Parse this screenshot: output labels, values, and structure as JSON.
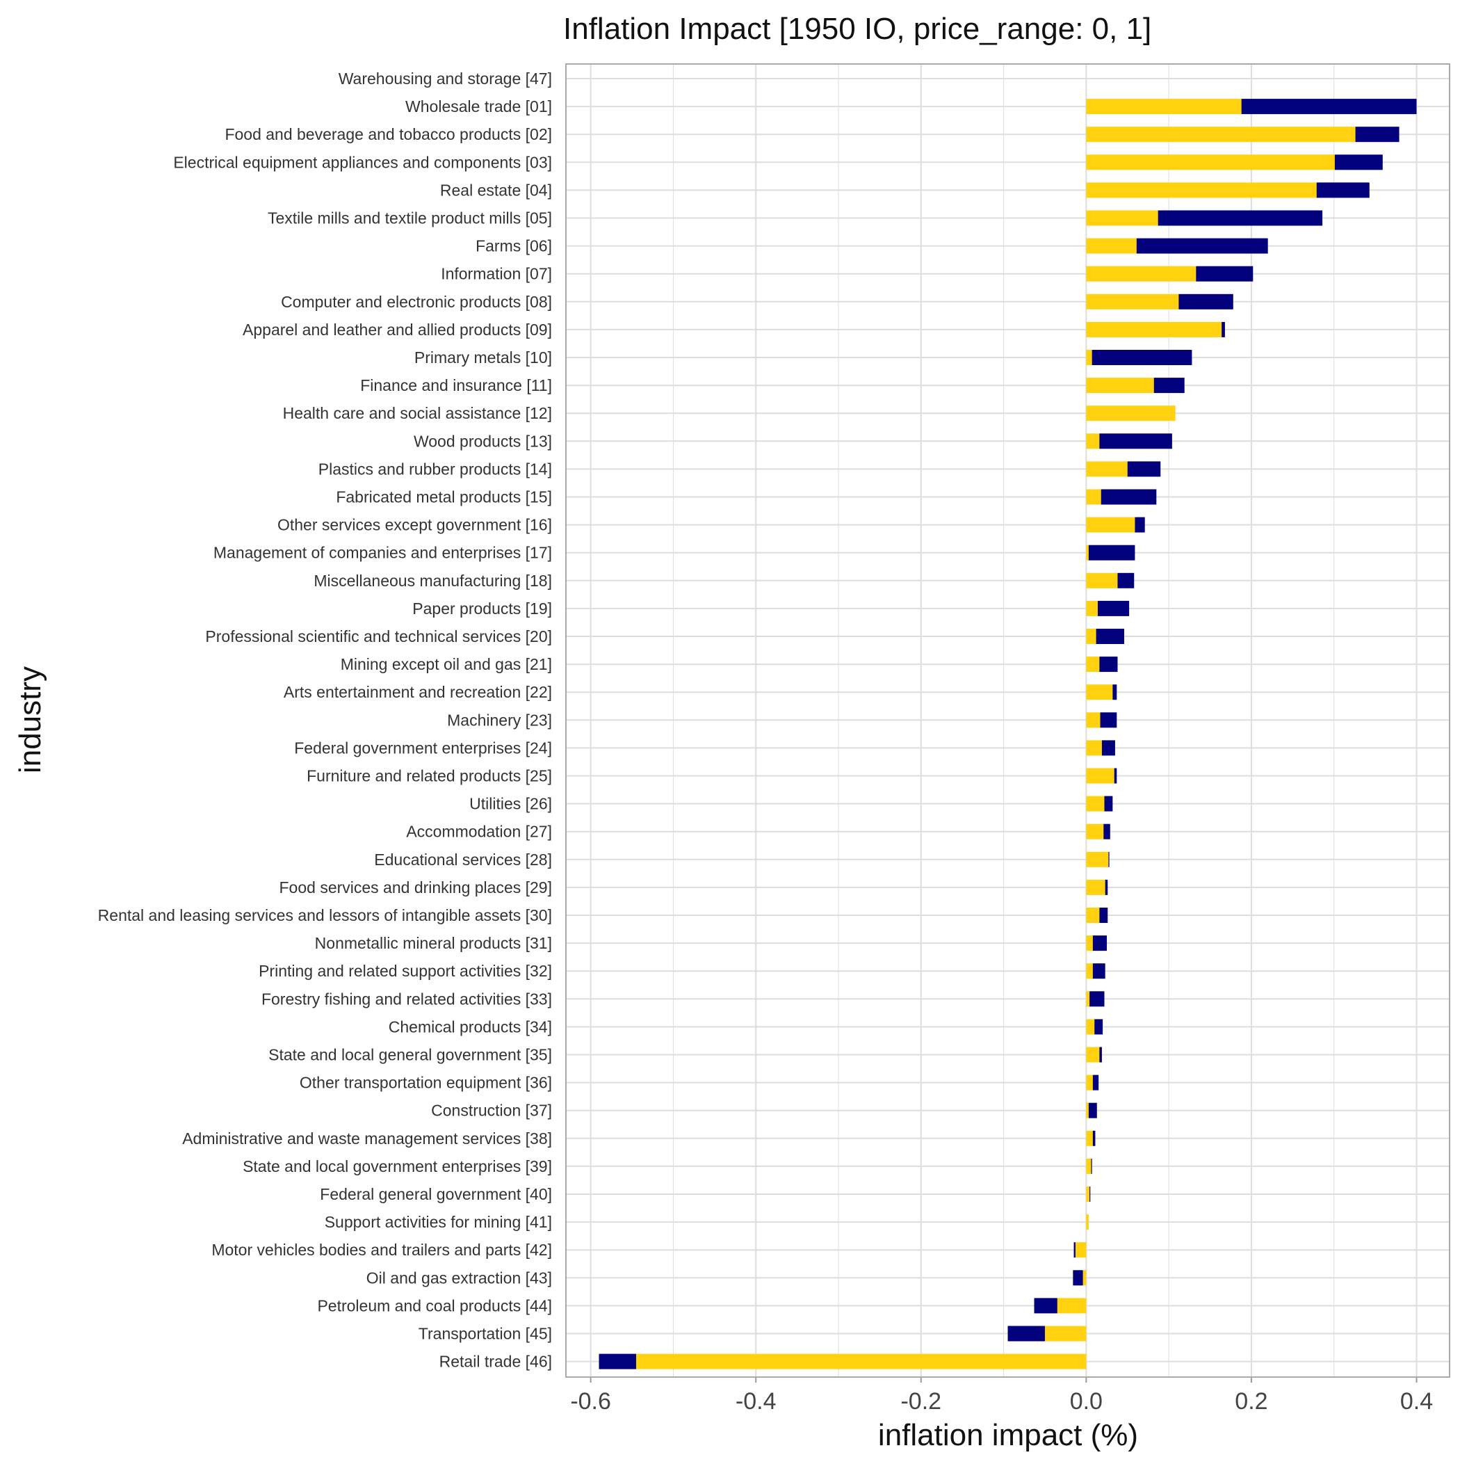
{
  "chart_data": {
    "type": "bar",
    "orientation": "horizontal",
    "stacked": true,
    "title": "Inflation Impact [1950 IO, price_range: 0, 1]",
    "xlabel": "inflation impact (%)",
    "ylabel": "industry",
    "xlim": [
      -0.63,
      0.44
    ],
    "xticks": [
      -0.6,
      -0.4,
      -0.2,
      0.0,
      0.2,
      0.4
    ],
    "xtick_labels": [
      "-0.6",
      "-0.4",
      "-0.2",
      "0.0",
      "0.2",
      "0.4"
    ],
    "grid": true,
    "legend": "none",
    "colors": {
      "gold": "#FFD10F",
      "navy": "#02007A",
      "grid": "#DDDDDD",
      "panel_border": "#AAAAAA"
    },
    "categories": [
      "Warehousing and storage [47]",
      "Wholesale trade [01]",
      "Food and beverage and tobacco products [02]",
      "Electrical equipment appliances and components [03]",
      "Real estate [04]",
      "Textile mills and textile product mills [05]",
      "Farms [06]",
      "Information [07]",
      "Computer and electronic products [08]",
      "Apparel and leather and allied products [09]",
      "Primary metals [10]",
      "Finance and insurance [11]",
      "Health care and social assistance [12]",
      "Wood products [13]",
      "Plastics and rubber products [14]",
      "Fabricated metal products [15]",
      "Other services except government [16]",
      "Management of companies and enterprises [17]",
      "Miscellaneous manufacturing [18]",
      "Paper products [19]",
      "Professional scientific and technical services [20]",
      "Mining except oil and gas [21]",
      "Arts entertainment and recreation [22]",
      "Machinery [23]",
      "Federal government enterprises [24]",
      "Furniture and related products [25]",
      "Utilities [26]",
      "Accommodation [27]",
      "Educational services [28]",
      "Food services and drinking places [29]",
      "Rental and leasing services and lessors of intangible assets [30]",
      "Nonmetallic mineral products [31]",
      "Printing and related support activities [32]",
      "Forestry fishing and related activities [33]",
      "Chemical products [34]",
      "State and local general government [35]",
      "Other transportation equipment [36]",
      "Construction [37]",
      "Administrative and waste management services [38]",
      "State and local government enterprises [39]",
      "Federal general government [40]",
      "Support activities for mining [41]",
      "Motor vehicles bodies and trailers and parts [42]",
      "Oil and gas extraction [43]",
      "Petroleum and coal products [44]",
      "Transportation [45]",
      "Retail trade [46]"
    ],
    "series": [
      {
        "color": "#FFD10F",
        "values": [
          0.0,
          0.188,
          0.326,
          0.301,
          0.279,
          0.087,
          0.061,
          0.133,
          0.112,
          0.164,
          0.007,
          0.082,
          0.108,
          0.016,
          0.05,
          0.018,
          0.059,
          0.003,
          0.038,
          0.014,
          0.012,
          0.016,
          0.032,
          0.017,
          0.019,
          0.034,
          0.022,
          0.021,
          0.027,
          0.023,
          0.016,
          0.008,
          0.008,
          0.004,
          0.01,
          0.016,
          0.008,
          0.003,
          0.008,
          0.006,
          0.004,
          0.003,
          -0.013,
          -0.004,
          -0.035,
          -0.05,
          -0.545
        ]
      },
      {
        "color": "#02007A",
        "values": [
          0.0,
          0.212,
          0.053,
          0.058,
          0.064,
          0.199,
          0.159,
          0.069,
          0.066,
          0.004,
          0.121,
          0.037,
          0.0,
          0.088,
          0.04,
          0.067,
          0.012,
          0.056,
          0.02,
          0.038,
          0.034,
          0.022,
          0.005,
          0.02,
          0.016,
          0.003,
          0.01,
          0.008,
          0.001,
          0.003,
          0.01,
          0.017,
          0.015,
          0.018,
          0.01,
          0.003,
          0.007,
          0.01,
          0.003,
          0.001,
          0.001,
          0.0,
          -0.002,
          -0.012,
          -0.028,
          -0.045,
          -0.045
        ]
      }
    ]
  }
}
